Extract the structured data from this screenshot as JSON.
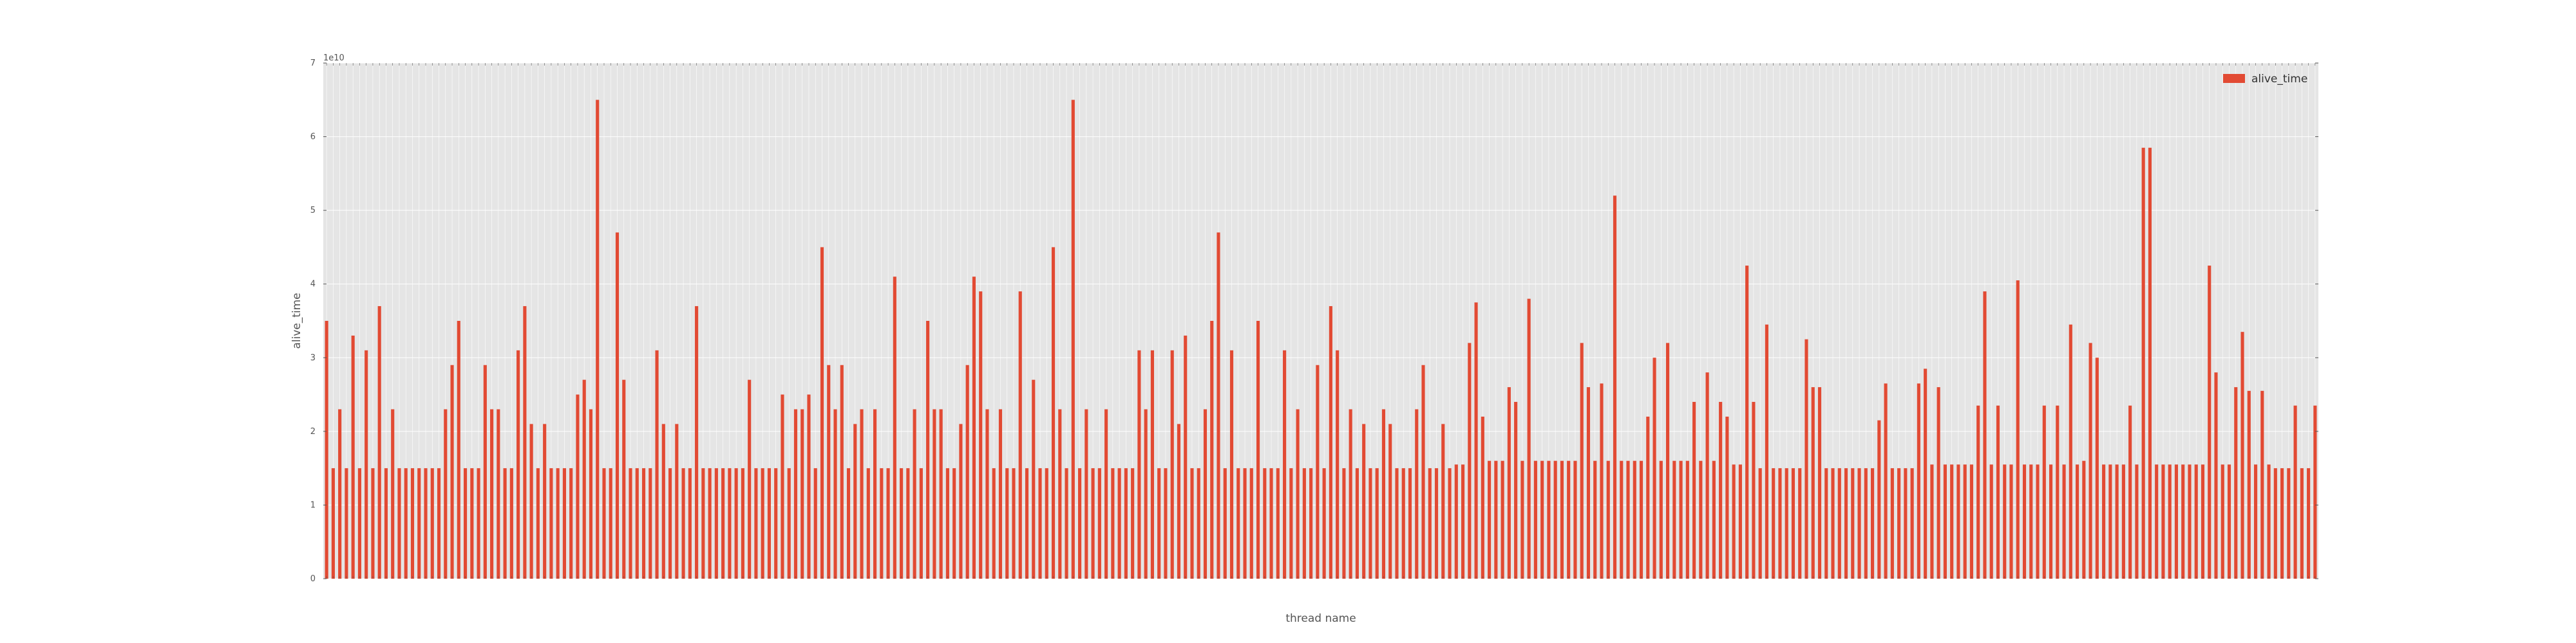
{
  "chart_data": {
    "type": "bar",
    "title": "",
    "xlabel": "thread name",
    "ylabel": "alive_time",
    "y_offset_text": "1e10",
    "ylim": [
      0,
      70000000000.0
    ],
    "yticks": [
      0,
      10000000000.0,
      20000000000.0,
      30000000000.0,
      40000000000.0,
      50000000000.0,
      60000000000.0,
      70000000000.0
    ],
    "ytick_labels": [
      "0",
      "1",
      "2",
      "3",
      "4",
      "5",
      "6",
      "7"
    ],
    "grid": true,
    "legend_position": "top-right",
    "colors": {
      "bar": "#E24A33",
      "plot_bg": "#E5E5E5",
      "grid": "#FFFFFF",
      "text": "#555555"
    },
    "series": [
      {
        "name": "alive_time",
        "values": [
          35000000000.0,
          15000000000.0,
          23000000000.0,
          15000000000.0,
          33000000000.0,
          15000000000.0,
          31000000000.0,
          15000000000.0,
          37000000000.0,
          15000000000.0,
          23000000000.0,
          15000000000.0,
          15000000000.0,
          15000000000.0,
          15000000000.0,
          15000000000.0,
          15000000000.0,
          15000000000.0,
          23000000000.0,
          29000000000.0,
          35000000000.0,
          15000000000.0,
          15000000000.0,
          15000000000.0,
          29000000000.0,
          23000000000.0,
          23000000000.0,
          15000000000.0,
          15000000000.0,
          31000000000.0,
          37000000000.0,
          21000000000.0,
          15000000000.0,
          21000000000.0,
          15000000000.0,
          15000000000.0,
          15000000000.0,
          15000000000.0,
          25000000000.0,
          27000000000.0,
          23000000000.0,
          65000000000.0,
          15000000000.0,
          15000000000.0,
          47000000000.0,
          27000000000.0,
          15000000000.0,
          15000000000.0,
          15000000000.0,
          15000000000.0,
          31000000000.0,
          21000000000.0,
          15000000000.0,
          21000000000.0,
          15000000000.0,
          15000000000.0,
          37000000000.0,
          15000000000.0,
          15000000000.0,
          15000000000.0,
          15000000000.0,
          15000000000.0,
          15000000000.0,
          15000000000.0,
          27000000000.0,
          15000000000.0,
          15000000000.0,
          15000000000.0,
          15000000000.0,
          25000000000.0,
          15000000000.0,
          23000000000.0,
          23000000000.0,
          25000000000.0,
          15000000000.0,
          45000000000.0,
          29000000000.0,
          23000000000.0,
          29000000000.0,
          15000000000.0,
          21000000000.0,
          23000000000.0,
          15000000000.0,
          23000000000.0,
          15000000000.0,
          15000000000.0,
          41000000000.0,
          15000000000.0,
          15000000000.0,
          23000000000.0,
          15000000000.0,
          35000000000.0,
          23000000000.0,
          23000000000.0,
          15000000000.0,
          15000000000.0,
          21000000000.0,
          29000000000.0,
          41000000000.0,
          39000000000.0,
          23000000000.0,
          15000000000.0,
          23000000000.0,
          15000000000.0,
          15000000000.0,
          39000000000.0,
          15000000000.0,
          27000000000.0,
          15000000000.0,
          15000000000.0,
          45000000000.0,
          23000000000.0,
          15000000000.0,
          65000000000.0,
          15000000000.0,
          23000000000.0,
          15000000000.0,
          15000000000.0,
          23000000000.0,
          15000000000.0,
          15000000000.0,
          15000000000.0,
          15000000000.0,
          31000000000.0,
          23000000000.0,
          31000000000.0,
          15000000000.0,
          15000000000.0,
          31000000000.0,
          21000000000.0,
          33000000000.0,
          15000000000.0,
          15000000000.0,
          23000000000.0,
          35000000000.0,
          47000000000.0,
          15000000000.0,
          31000000000.0,
          15000000000.0,
          15000000000.0,
          15000000000.0,
          35000000000.0,
          15000000000.0,
          15000000000.0,
          15000000000.0,
          31000000000.0,
          15000000000.0,
          23000000000.0,
          15000000000.0,
          15000000000.0,
          29000000000.0,
          15000000000.0,
          37000000000.0,
          31000000000.0,
          15000000000.0,
          23000000000.0,
          15000000000.0,
          21000000000.0,
          15000000000.0,
          15000000000.0,
          23000000000.0,
          21000000000.0,
          15000000000.0,
          15000000000.0,
          15000000000.0,
          23000000000.0,
          29000000000.0,
          15000000000.0,
          15000000000.0,
          21000000000.0,
          15000000000.0,
          15500000000.0,
          15500000000.0,
          32000000000.0,
          37500000000.0,
          22000000000.0,
          16000000000.0,
          16000000000.0,
          16000000000.0,
          26000000000.0,
          24000000000.0,
          16000000000.0,
          38000000000.0,
          16000000000.0,
          16000000000.0,
          16000000000.0,
          16000000000.0,
          16000000000.0,
          16000000000.0,
          16000000000.0,
          32000000000.0,
          26000000000.0,
          16000000000.0,
          26500000000.0,
          16000000000.0,
          52000000000.0,
          16000000000.0,
          16000000000.0,
          16000000000.0,
          16000000000.0,
          22000000000.0,
          30000000000.0,
          16000000000.0,
          32000000000.0,
          16000000000.0,
          16000000000.0,
          16000000000.0,
          24000000000.0,
          16000000000.0,
          28000000000.0,
          16000000000.0,
          24000000000.0,
          22000000000.0,
          15500000000.0,
          15500000000.0,
          42500000000.0,
          24000000000.0,
          15000000000.0,
          34500000000.0,
          15000000000.0,
          15000000000.0,
          15000000000.0,
          15000000000.0,
          15000000000.0,
          32500000000.0,
          26000000000.0,
          26000000000.0,
          15000000000.0,
          15000000000.0,
          15000000000.0,
          15000000000.0,
          15000000000.0,
          15000000000.0,
          15000000000.0,
          15000000000.0,
          21500000000.0,
          26500000000.0,
          15000000000.0,
          15000000000.0,
          15000000000.0,
          15000000000.0,
          26500000000.0,
          28500000000.0,
          15500000000.0,
          26000000000.0,
          15500000000.0,
          15500000000.0,
          15500000000.0,
          15500000000.0,
          15500000000.0,
          23500000000.0,
          39000000000.0,
          15500000000.0,
          23500000000.0,
          15500000000.0,
          15500000000.0,
          40500000000.0,
          15500000000.0,
          15500000000.0,
          15500000000.0,
          23500000000.0,
          15500000000.0,
          23500000000.0,
          15500000000.0,
          34500000000.0,
          15500000000.0,
          16000000000.0,
          32000000000.0,
          30000000000.0,
          15500000000.0,
          15500000000.0,
          15500000000.0,
          15500000000.0,
          23500000000.0,
          15500000000.0,
          58500000000.0,
          58500000000.0,
          15500000000.0,
          15500000000.0,
          15500000000.0,
          15500000000.0,
          15500000000.0,
          15500000000.0,
          15500000000.0,
          15500000000.0,
          42500000000.0,
          28000000000.0,
          15500000000.0,
          15500000000.0,
          26000000000.0,
          33500000000.0,
          25500000000.0,
          15500000000.0,
          25500000000.0,
          15500000000.0,
          15000000000.0,
          15000000000.0,
          15000000000.0,
          23500000000.0,
          15000000000.0,
          15000000000.0,
          23500000000.0
        ]
      }
    ]
  }
}
